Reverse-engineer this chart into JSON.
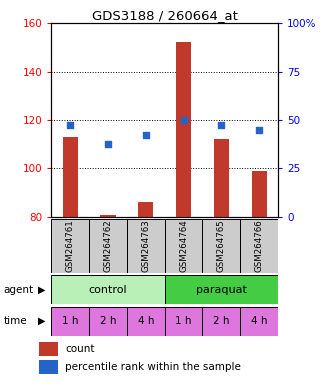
{
  "title": "GDS3188 / 260664_at",
  "samples": [
    "GSM264761",
    "GSM264762",
    "GSM264763",
    "GSM264764",
    "GSM264765",
    "GSM264766"
  ],
  "count_values": [
    113,
    81,
    86,
    152,
    112,
    99
  ],
  "percentile_values": [
    47.5,
    37.5,
    42.5,
    50,
    47.5,
    45
  ],
  "ylim_left": [
    80,
    160
  ],
  "ylim_right": [
    0,
    100
  ],
  "yticks_left": [
    80,
    100,
    120,
    140,
    160
  ],
  "yticks_right": [
    0,
    25,
    50,
    75,
    100
  ],
  "ytick_labels_right": [
    "0",
    "25",
    "50",
    "75",
    "100%"
  ],
  "bar_color": "#c0392b",
  "dot_color": "#2563c7",
  "time_labels": [
    "1 h",
    "2 h",
    "4 h",
    "1 h",
    "2 h",
    "4 h"
  ],
  "time_color": "#dd77dd",
  "legend_count_label": "count",
  "legend_pct_label": "percentile rank within the sample",
  "bar_width": 0.4,
  "dot_size": 22,
  "background_color": "#ffffff",
  "sample_box_color": "#cccccc",
  "ctrl_color": "#b8f0b8",
  "paraquat_color": "#44cc44"
}
